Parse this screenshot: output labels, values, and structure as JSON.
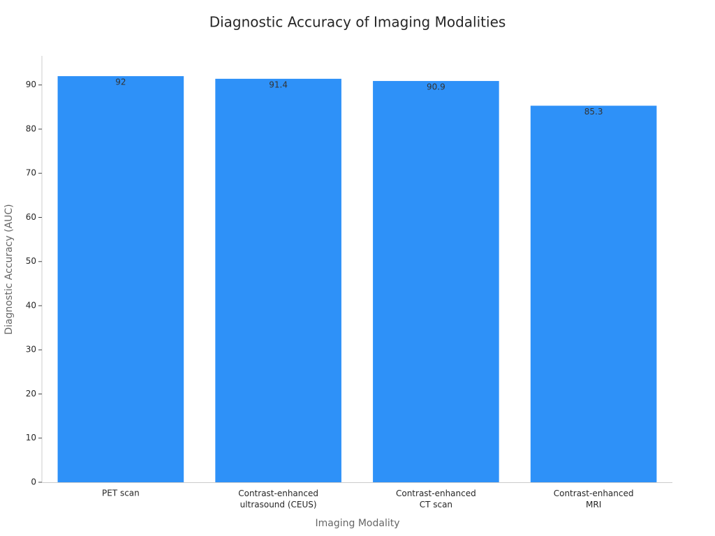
{
  "chart_data": {
    "type": "bar",
    "title": "Diagnostic Accuracy of Imaging Modalities",
    "x_label": "Imaging Modality",
    "y_label": "Diagnostic Accuracy (AUC)",
    "categories": [
      "PET scan",
      "Contrast-enhanced\nultrasound (CEUS)",
      "Contrast-enhanced\nCT scan",
      "Contrast-enhanced\nMRI"
    ],
    "values": [
      92,
      91.4,
      90.9,
      85.3
    ],
    "color": "#2e91f8",
    "ylim": [
      0,
      96.6
    ],
    "yticks": [
      0,
      10,
      20,
      30,
      40,
      50,
      60,
      70,
      80,
      90
    ],
    "grid": false
  }
}
